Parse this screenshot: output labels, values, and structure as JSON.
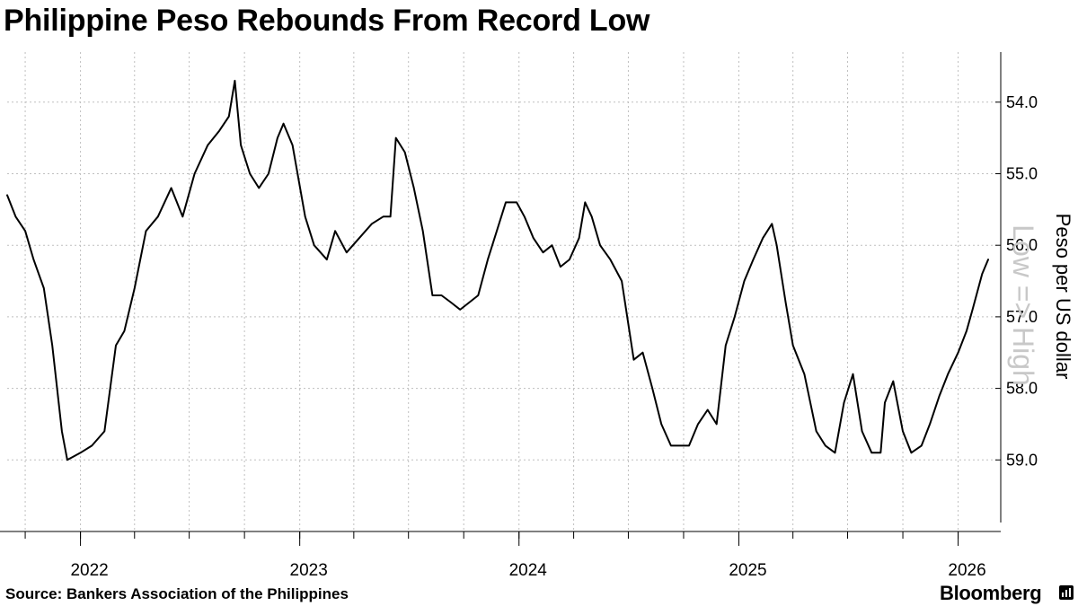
{
  "header": {
    "title": "Philippine Peso Rebounds From Record Low"
  },
  "footer": {
    "source": "Source: Bankers Association of the Philippines",
    "brand": "Bloomberg"
  },
  "colors": {
    "line": "#000000",
    "grid": "#bfbfbf",
    "axis": "#000000",
    "watermark": "#c8c8c8"
  },
  "chart_data": {
    "type": "line",
    "title": "Philippine Peso Rebounds From Record Low",
    "ylabel": "Peso per US dollar",
    "annotation": "Low => High",
    "y_inverted": true,
    "ylim": [
      53.3,
      60.0
    ],
    "yticks": [
      54.0,
      55.0,
      56.0,
      57.0,
      58.0,
      59.0
    ],
    "ytick_labels": [
      "54.0",
      "55.0",
      "56.0",
      "57.0",
      "58.0",
      "59.0"
    ],
    "xlim": [
      "2021-09-01",
      "2026-02-20"
    ],
    "xticks": [
      "2022-01-01",
      "2023-01-01",
      "2024-01-01",
      "2025-01-01",
      "2026-01-01"
    ],
    "xtick_labels": [
      "2022",
      "2023",
      "2024",
      "2025",
      "2026"
    ],
    "grid": true,
    "series": [
      {
        "values": [
          [
            "2021-09-01",
            55.3
          ],
          [
            "2021-09-15",
            55.6
          ],
          [
            "2021-10-01",
            55.8
          ],
          [
            "2021-10-15",
            56.2
          ],
          [
            "2021-11-01",
            56.6
          ],
          [
            "2021-11-15",
            57.4
          ],
          [
            "2021-12-01",
            58.6
          ],
          [
            "2021-12-10",
            59.0
          ],
          [
            "2022-01-01",
            58.9
          ],
          [
            "2022-01-20",
            58.8
          ],
          [
            "2022-02-10",
            58.6
          ],
          [
            "2022-03-01",
            57.4
          ],
          [
            "2022-03-15",
            57.2
          ],
          [
            "2022-04-01",
            56.6
          ],
          [
            "2022-04-20",
            55.8
          ],
          [
            "2022-05-10",
            55.6
          ],
          [
            "2022-06-01",
            55.2
          ],
          [
            "2022-06-20",
            55.6
          ],
          [
            "2022-07-10",
            55.0
          ],
          [
            "2022-08-01",
            54.6
          ],
          [
            "2022-08-20",
            54.4
          ],
          [
            "2022-09-05",
            54.2
          ],
          [
            "2022-09-15",
            53.7
          ],
          [
            "2022-09-25",
            54.6
          ],
          [
            "2022-10-10",
            55.0
          ],
          [
            "2022-10-25",
            55.2
          ],
          [
            "2022-11-10",
            55.0
          ],
          [
            "2022-11-25",
            54.5
          ],
          [
            "2022-12-05",
            54.3
          ],
          [
            "2022-12-20",
            54.6
          ],
          [
            "2023-01-10",
            55.6
          ],
          [
            "2023-01-25",
            56.0
          ],
          [
            "2023-02-15",
            56.2
          ],
          [
            "2023-03-01",
            55.8
          ],
          [
            "2023-03-20",
            56.1
          ],
          [
            "2023-04-10",
            55.9
          ],
          [
            "2023-05-01",
            55.7
          ],
          [
            "2023-05-20",
            55.6
          ],
          [
            "2023-06-01",
            55.6
          ],
          [
            "2023-06-10",
            54.5
          ],
          [
            "2023-06-25",
            54.7
          ],
          [
            "2023-07-10",
            55.2
          ],
          [
            "2023-07-25",
            55.8
          ],
          [
            "2023-08-10",
            56.7
          ],
          [
            "2023-08-25",
            56.7
          ],
          [
            "2023-09-10",
            56.8
          ],
          [
            "2023-09-25",
            56.9
          ],
          [
            "2023-10-10",
            56.8
          ],
          [
            "2023-10-25",
            56.7
          ],
          [
            "2023-11-10",
            56.2
          ],
          [
            "2023-11-25",
            55.8
          ],
          [
            "2023-12-10",
            55.4
          ],
          [
            "2023-12-28",
            55.4
          ],
          [
            "2024-01-10",
            55.6
          ],
          [
            "2024-01-25",
            55.9
          ],
          [
            "2024-02-10",
            56.1
          ],
          [
            "2024-02-25",
            56.0
          ],
          [
            "2024-03-10",
            56.3
          ],
          [
            "2024-03-25",
            56.2
          ],
          [
            "2024-04-10",
            55.9
          ],
          [
            "2024-04-20",
            55.4
          ],
          [
            "2024-05-01",
            55.6
          ],
          [
            "2024-05-15",
            56.0
          ],
          [
            "2024-06-01",
            56.2
          ],
          [
            "2024-06-20",
            56.5
          ],
          [
            "2024-07-10",
            57.6
          ],
          [
            "2024-07-25",
            57.5
          ],
          [
            "2024-08-10",
            58.0
          ],
          [
            "2024-08-25",
            58.5
          ],
          [
            "2024-09-10",
            58.8
          ],
          [
            "2024-09-25",
            58.8
          ],
          [
            "2024-10-10",
            58.8
          ],
          [
            "2024-10-25",
            58.5
          ],
          [
            "2024-11-10",
            58.3
          ],
          [
            "2024-11-25",
            58.5
          ],
          [
            "2024-12-10",
            57.4
          ],
          [
            "2024-12-25",
            57.0
          ],
          [
            "2025-01-10",
            56.5
          ],
          [
            "2025-01-25",
            56.2
          ],
          [
            "2025-02-10",
            55.9
          ],
          [
            "2025-02-25",
            55.7
          ],
          [
            "2025-03-05",
            56.0
          ],
          [
            "2025-03-20",
            56.8
          ],
          [
            "2025-04-01",
            57.4
          ],
          [
            "2025-04-20",
            57.8
          ],
          [
            "2025-05-10",
            58.6
          ],
          [
            "2025-05-25",
            58.8
          ],
          [
            "2025-06-10",
            58.9
          ],
          [
            "2025-06-25",
            58.2
          ],
          [
            "2025-07-10",
            57.8
          ],
          [
            "2025-07-25",
            58.6
          ],
          [
            "2025-08-10",
            58.9
          ],
          [
            "2025-08-25",
            58.9
          ],
          [
            "2025-09-01",
            58.2
          ],
          [
            "2025-09-15",
            57.9
          ],
          [
            "2025-10-01",
            58.6
          ],
          [
            "2025-10-15",
            58.9
          ],
          [
            "2025-11-01",
            58.8
          ],
          [
            "2025-11-15",
            58.5
          ],
          [
            "2025-12-01",
            58.1
          ],
          [
            "2025-12-15",
            57.8
          ],
          [
            "2026-01-01",
            57.5
          ],
          [
            "2026-01-15",
            57.2
          ],
          [
            "2026-01-25",
            56.9
          ],
          [
            "2026-02-10",
            56.4
          ],
          [
            "2026-02-20",
            56.2
          ]
        ]
      }
    ]
  }
}
